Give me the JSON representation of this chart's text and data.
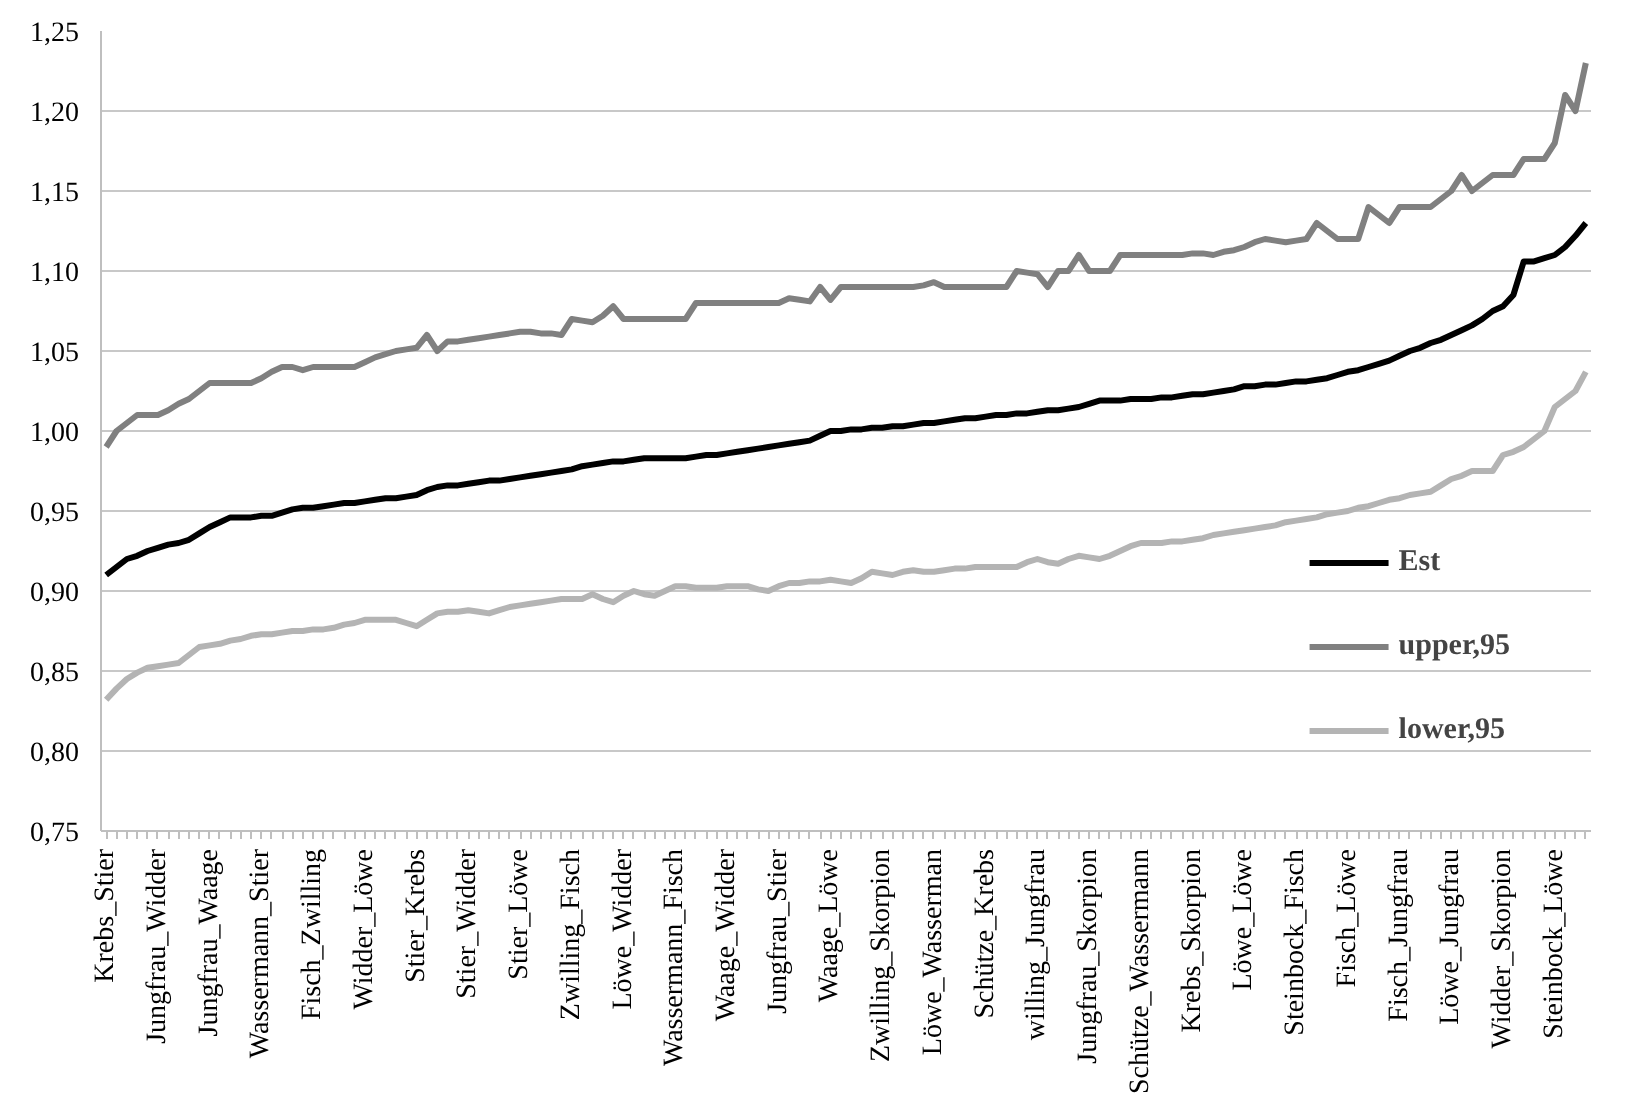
{
  "chart_data": {
    "type": "line",
    "categories": [
      "Krebs_Stier",
      null,
      null,
      null,
      null,
      "Jungfrau_Widder",
      null,
      null,
      null,
      null,
      "Jungfrau_Waage",
      null,
      null,
      null,
      null,
      "Wassermann_Stier",
      null,
      null,
      null,
      null,
      "Fisch_Zwilling",
      null,
      null,
      null,
      null,
      "Widder_Löwe",
      null,
      null,
      null,
      null,
      "Stier_Krebs",
      null,
      null,
      null,
      null,
      "Stier_Widder",
      null,
      null,
      null,
      null,
      "Stier_Löwe",
      null,
      null,
      null,
      null,
      "Zwilling_Fisch",
      null,
      null,
      null,
      null,
      "Löwe_Widder",
      null,
      null,
      null,
      null,
      "Wassermann_Fisch",
      null,
      null,
      null,
      null,
      "Waage_Widder",
      null,
      null,
      null,
      null,
      "Jungfrau_Stier",
      null,
      null,
      null,
      null,
      "Waage_Löwe",
      null,
      null,
      null,
      null,
      "Zwilling_Skorpion",
      null,
      null,
      null,
      null,
      "Löwe_Wasserman",
      null,
      null,
      null,
      null,
      "Schütze_Krebs",
      null,
      null,
      null,
      null,
      "willing_Jungfrau",
      null,
      null,
      null,
      null,
      "Jungfrau_Skorpion",
      null,
      null,
      null,
      null,
      "Schütze_Wassermann",
      null,
      null,
      null,
      null,
      "Krebs_Skorpion",
      null,
      null,
      null,
      null,
      "Löwe_Löwe",
      null,
      null,
      null,
      null,
      "Steinbock_Fisch",
      null,
      null,
      null,
      null,
      "Fisch_Löwe",
      null,
      null,
      null,
      null,
      "Fisch_Jungfrau",
      null,
      null,
      null,
      null,
      "Löwe_Jungfrau",
      null,
      null,
      null,
      null,
      "Widder_Skorpion",
      null,
      null,
      null,
      null,
      "Steinbock_Löwe",
      null,
      null,
      null
    ],
    "series": [
      {
        "name": "Est",
        "color": "#000000",
        "values": [
          0.91,
          0.915,
          0.92,
          0.922,
          0.925,
          0.927,
          0.929,
          0.93,
          0.932,
          0.936,
          0.94,
          0.943,
          0.946,
          0.946,
          0.946,
          0.947,
          0.947,
          0.949,
          0.951,
          0.952,
          0.952,
          0.953,
          0.954,
          0.955,
          0.955,
          0.956,
          0.957,
          0.958,
          0.958,
          0.959,
          0.96,
          0.963,
          0.965,
          0.966,
          0.966,
          0.967,
          0.968,
          0.969,
          0.969,
          0.97,
          0.971,
          0.972,
          0.973,
          0.974,
          0.975,
          0.976,
          0.978,
          0.979,
          0.98,
          0.981,
          0.981,
          0.982,
          0.983,
          0.983,
          0.983,
          0.983,
          0.983,
          0.984,
          0.985,
          0.985,
          0.986,
          0.987,
          0.988,
          0.989,
          0.99,
          0.991,
          0.992,
          0.993,
          0.994,
          0.997,
          1.0,
          1.0,
          1.001,
          1.001,
          1.002,
          1.002,
          1.003,
          1.003,
          1.004,
          1.005,
          1.005,
          1.006,
          1.007,
          1.008,
          1.008,
          1.009,
          1.01,
          1.01,
          1.011,
          1.011,
          1.012,
          1.013,
          1.013,
          1.014,
          1.015,
          1.017,
          1.019,
          1.019,
          1.019,
          1.02,
          1.02,
          1.02,
          1.021,
          1.021,
          1.022,
          1.023,
          1.023,
          1.024,
          1.025,
          1.026,
          1.028,
          1.028,
          1.029,
          1.029,
          1.03,
          1.031,
          1.031,
          1.032,
          1.033,
          1.035,
          1.037,
          1.038,
          1.04,
          1.042,
          1.044,
          1.047,
          1.05,
          1.052,
          1.055,
          1.057,
          1.06,
          1.063,
          1.066,
          1.07,
          1.075,
          1.078,
          1.085,
          1.106,
          1.106,
          1.108,
          1.11,
          1.115,
          1.122,
          1.13
        ]
      },
      {
        "name": "upper,95",
        "color": "#808080",
        "values": [
          0.99,
          1.0,
          1.005,
          1.01,
          1.01,
          1.01,
          1.013,
          1.017,
          1.02,
          1.025,
          1.03,
          1.03,
          1.03,
          1.03,
          1.03,
          1.033,
          1.037,
          1.04,
          1.04,
          1.038,
          1.04,
          1.04,
          1.04,
          1.04,
          1.04,
          1.043,
          1.046,
          1.048,
          1.05,
          1.051,
          1.052,
          1.06,
          1.05,
          1.056,
          1.056,
          1.057,
          1.058,
          1.059,
          1.06,
          1.061,
          1.062,
          1.062,
          1.061,
          1.061,
          1.06,
          1.07,
          1.069,
          1.068,
          1.072,
          1.078,
          1.07,
          1.07,
          1.07,
          1.07,
          1.07,
          1.07,
          1.07,
          1.08,
          1.08,
          1.08,
          1.08,
          1.08,
          1.08,
          1.08,
          1.08,
          1.08,
          1.083,
          1.082,
          1.081,
          1.09,
          1.082,
          1.09,
          1.09,
          1.09,
          1.09,
          1.09,
          1.09,
          1.09,
          1.09,
          1.091,
          1.093,
          1.09,
          1.09,
          1.09,
          1.09,
          1.09,
          1.09,
          1.09,
          1.1,
          1.099,
          1.098,
          1.09,
          1.1,
          1.1,
          1.11,
          1.1,
          1.1,
          1.1,
          1.11,
          1.11,
          1.11,
          1.11,
          1.11,
          1.11,
          1.11,
          1.111,
          1.111,
          1.11,
          1.112,
          1.113,
          1.115,
          1.118,
          1.12,
          1.119,
          1.118,
          1.119,
          1.12,
          1.13,
          1.125,
          1.12,
          1.12,
          1.12,
          1.14,
          1.135,
          1.13,
          1.14,
          1.14,
          1.14,
          1.14,
          1.145,
          1.15,
          1.16,
          1.15,
          1.155,
          1.16,
          1.16,
          1.16,
          1.17,
          1.17,
          1.17,
          1.18,
          1.21,
          1.2,
          1.23
        ]
      },
      {
        "name": "lower,95",
        "color": "#b4b4b4",
        "values": [
          0.832,
          0.839,
          0.845,
          0.849,
          0.852,
          0.853,
          0.854,
          0.855,
          0.86,
          0.865,
          0.866,
          0.867,
          0.869,
          0.87,
          0.872,
          0.873,
          0.873,
          0.874,
          0.875,
          0.875,
          0.876,
          0.876,
          0.877,
          0.879,
          0.88,
          0.882,
          0.882,
          0.882,
          0.882,
          0.88,
          0.878,
          0.882,
          0.886,
          0.887,
          0.887,
          0.888,
          0.887,
          0.886,
          0.888,
          0.89,
          0.891,
          0.892,
          0.893,
          0.894,
          0.895,
          0.895,
          0.895,
          0.898,
          0.895,
          0.893,
          0.897,
          0.9,
          0.898,
          0.897,
          0.9,
          0.903,
          0.903,
          0.902,
          0.902,
          0.902,
          0.903,
          0.903,
          0.903,
          0.901,
          0.9,
          0.903,
          0.905,
          0.905,
          0.906,
          0.906,
          0.907,
          0.906,
          0.905,
          0.908,
          0.912,
          0.911,
          0.91,
          0.912,
          0.913,
          0.912,
          0.912,
          0.913,
          0.914,
          0.914,
          0.915,
          0.915,
          0.915,
          0.915,
          0.915,
          0.918,
          0.92,
          0.918,
          0.917,
          0.92,
          0.922,
          0.921,
          0.92,
          0.922,
          0.925,
          0.928,
          0.93,
          0.93,
          0.93,
          0.931,
          0.931,
          0.932,
          0.933,
          0.935,
          0.936,
          0.937,
          0.938,
          0.939,
          0.94,
          0.941,
          0.943,
          0.944,
          0.945,
          0.946,
          0.948,
          0.949,
          0.95,
          0.952,
          0.953,
          0.955,
          0.957,
          0.958,
          0.96,
          0.961,
          0.962,
          0.966,
          0.97,
          0.972,
          0.975,
          0.975,
          0.975,
          0.985,
          0.987,
          0.99,
          0.995,
          1.0,
          1.015,
          1.02,
          1.025,
          1.037
        ]
      }
    ],
    "ylim": [
      0.75,
      1.25
    ],
    "yticks": [
      {
        "value": 0.75,
        "label": "0,75"
      },
      {
        "value": 0.8,
        "label": "0,80"
      },
      {
        "value": 0.85,
        "label": "0,85"
      },
      {
        "value": 0.9,
        "label": "0,90"
      },
      {
        "value": 0.95,
        "label": "0,95"
      },
      {
        "value": 1.0,
        "label": "1,00"
      },
      {
        "value": 1.05,
        "label": "1,05"
      },
      {
        "value": 1.1,
        "label": "1,10"
      },
      {
        "value": 1.15,
        "label": "1,15"
      },
      {
        "value": 1.2,
        "label": "1,20"
      },
      {
        "value": 1.25,
        "label": "1,25"
      }
    ],
    "grid": "y",
    "legend": "bottom right",
    "marker": "none",
    "line_style": "solid"
  }
}
